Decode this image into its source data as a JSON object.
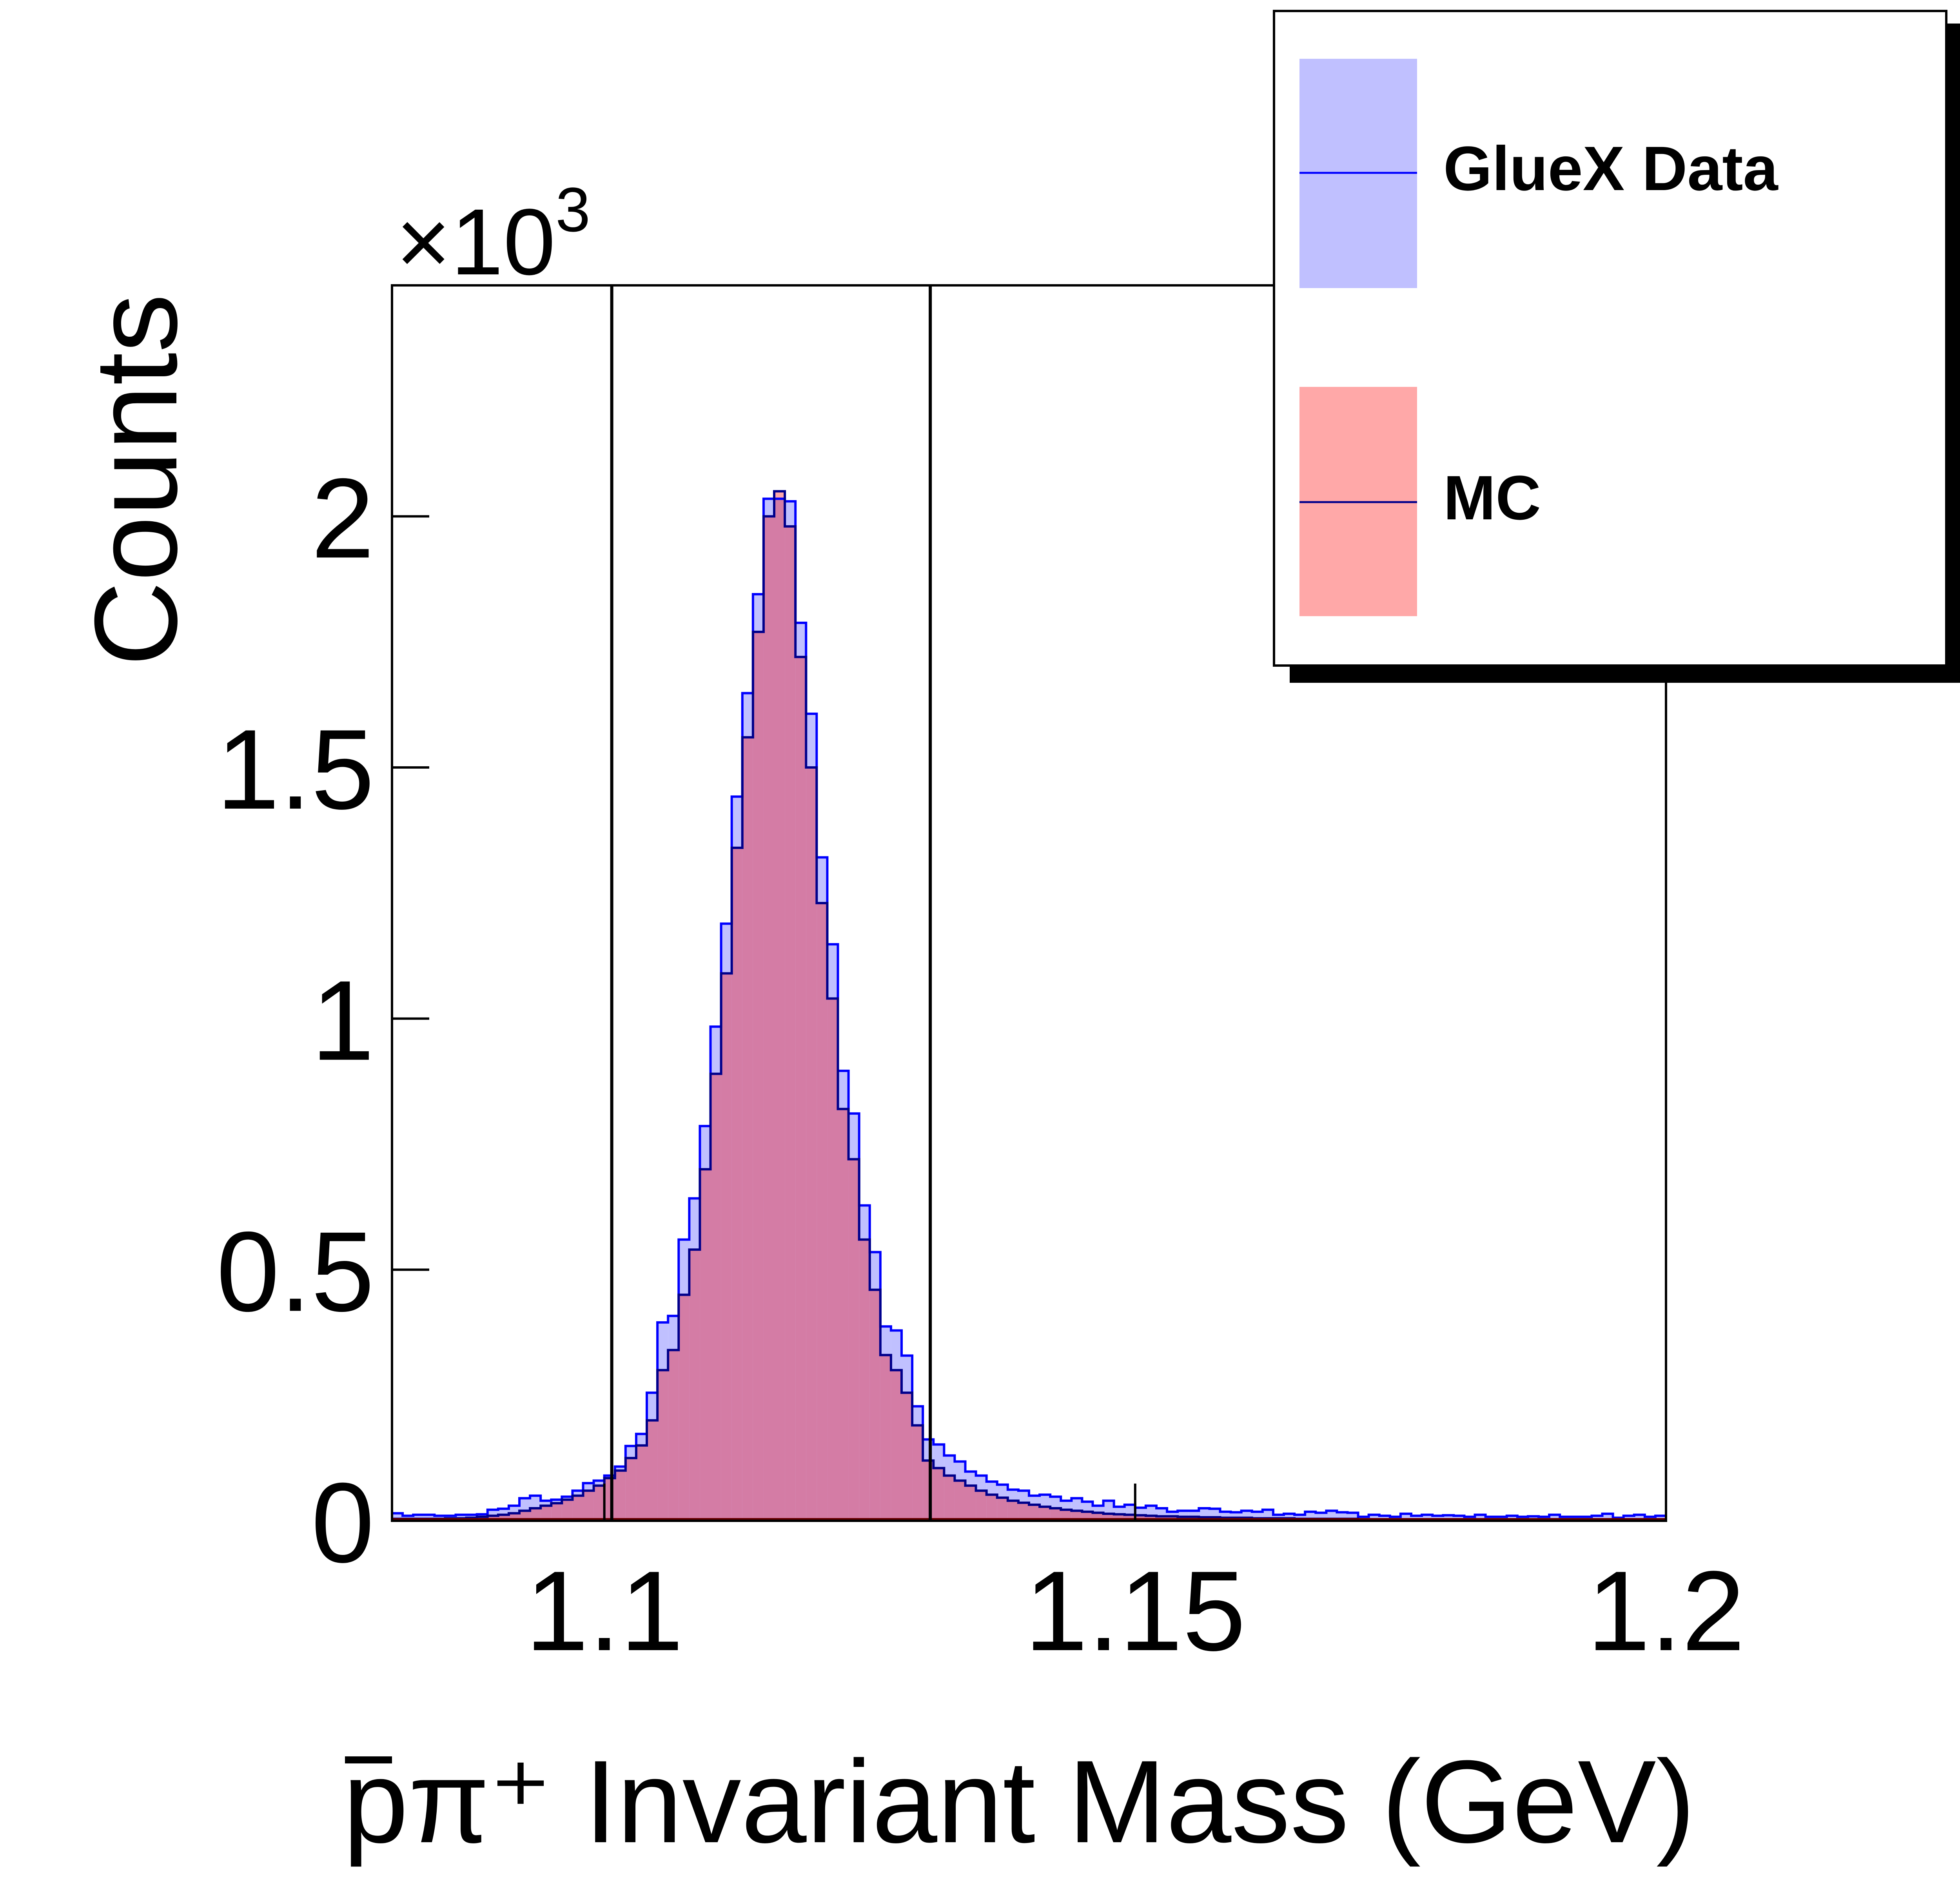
{
  "chart_data": {
    "type": "histogram",
    "title": "",
    "xlabel": "p̅π⁺ Invariant Mass (GeV)",
    "xlabel_parts": {
      "particle_bar": "p",
      "rest": "π⁺ Invariant Mass (GeV)"
    },
    "ylabel": "Counts",
    "y_multiplier_label": {
      "base": "×10",
      "exponent": "3"
    },
    "xlim": [
      1.08,
      1.2
    ],
    "ylim": [
      0,
      2.46
    ],
    "x_ticks": [
      1.1,
      1.15,
      1.2
    ],
    "x_tick_labels": [
      "1.1",
      "1.15",
      "1.2"
    ],
    "y_ticks": [
      0,
      0.5,
      1,
      1.5,
      2
    ],
    "y_tick_labels": [
      "0",
      "0.5",
      "1",
      "1.5",
      "2"
    ],
    "bin_width": 0.001,
    "bin_start": 1.08,
    "cut_lines": [
      1.1007,
      1.1307
    ],
    "grid": false,
    "legend_position": "top-right",
    "series": [
      {
        "name": "GlueX Data",
        "fill_color": "#c0c0ff",
        "line_color": "#0000ff",
        "values": [
          0.015,
          0.01,
          0.012,
          0.012,
          0.01,
          0.01,
          0.012,
          0.012,
          0.013,
          0.022,
          0.024,
          0.03,
          0.045,
          0.05,
          0.04,
          0.042,
          0.048,
          0.06,
          0.075,
          0.08,
          0.09,
          0.108,
          0.149,
          0.173,
          0.255,
          0.395,
          0.408,
          0.56,
          0.642,
          0.786,
          0.984,
          1.189,
          1.442,
          1.648,
          1.845,
          2.035,
          2.035,
          2.03,
          1.788,
          1.607,
          1.321,
          1.148,
          0.896,
          0.811,
          0.628,
          0.535,
          0.387,
          0.379,
          0.329,
          0.228,
          0.162,
          0.152,
          0.13,
          0.118,
          0.098,
          0.09,
          0.078,
          0.072,
          0.062,
          0.06,
          0.05,
          0.052,
          0.048,
          0.04,
          0.045,
          0.038,
          0.03,
          0.04,
          0.028,
          0.032,
          0.026,
          0.03,
          0.025,
          0.018,
          0.02,
          0.02,
          0.025,
          0.024,
          0.018,
          0.017,
          0.02,
          0.018,
          0.022,
          0.012,
          0.014,
          0.012,
          0.018,
          0.016,
          0.02,
          0.017,
          0.016,
          0.008,
          0.012,
          0.01,
          0.008,
          0.014,
          0.01,
          0.012,
          0.01,
          0.011,
          0.01,
          0.008,
          0.012,
          0.008,
          0.008,
          0.01,
          0.008,
          0.009,
          0.008,
          0.012,
          0.008,
          0.008,
          0.008,
          0.01,
          0.014,
          0.006,
          0.01,
          0.012,
          0.008,
          0.01
        ]
      },
      {
        "name": "MC",
        "fill_color": "#ffa8a8",
        "line_color": "#00008b",
        "values": [
          0.004,
          0.004,
          0.004,
          0.004,
          0.004,
          0.005,
          0.005,
          0.006,
          0.008,
          0.01,
          0.012,
          0.015,
          0.02,
          0.025,
          0.03,
          0.035,
          0.042,
          0.05,
          0.06,
          0.07,
          0.085,
          0.1,
          0.125,
          0.15,
          0.2,
          0.3,
          0.34,
          0.45,
          0.54,
          0.7,
          0.89,
          1.09,
          1.34,
          1.56,
          1.77,
          2.0,
          2.05,
          1.98,
          1.72,
          1.5,
          1.23,
          1.04,
          0.82,
          0.72,
          0.56,
          0.46,
          0.33,
          0.3,
          0.255,
          0.19,
          0.12,
          0.105,
          0.09,
          0.08,
          0.07,
          0.06,
          0.052,
          0.046,
          0.04,
          0.036,
          0.032,
          0.028,
          0.025,
          0.022,
          0.02,
          0.018,
          0.016,
          0.014,
          0.013,
          0.012,
          0.011,
          0.01,
          0.009,
          0.009,
          0.008,
          0.008,
          0.007,
          0.007,
          0.006,
          0.006,
          0.006,
          0.005,
          0.005,
          0.005,
          0.005,
          0.004,
          0.004,
          0.004,
          0.004,
          0.004,
          0.004,
          0.003,
          0.003,
          0.003,
          0.003,
          0.003,
          0.003,
          0.003,
          0.003,
          0.003,
          0.003,
          0.003,
          0.003,
          0.003,
          0.002,
          0.002,
          0.002,
          0.002,
          0.002,
          0.002,
          0.002,
          0.002,
          0.002,
          0.002,
          0.002,
          0.002,
          0.002,
          0.002,
          0.002,
          0.002
        ]
      }
    ],
    "overlap_color": "#d47ca5"
  },
  "legend": {
    "items": [
      {
        "label": "GlueX Data",
        "swatch_fill": "#c0c0ff",
        "line_color": "#0000ff"
      },
      {
        "label": "MC",
        "swatch_fill": "#ffa8a8",
        "line_color": "#00008b"
      }
    ]
  }
}
